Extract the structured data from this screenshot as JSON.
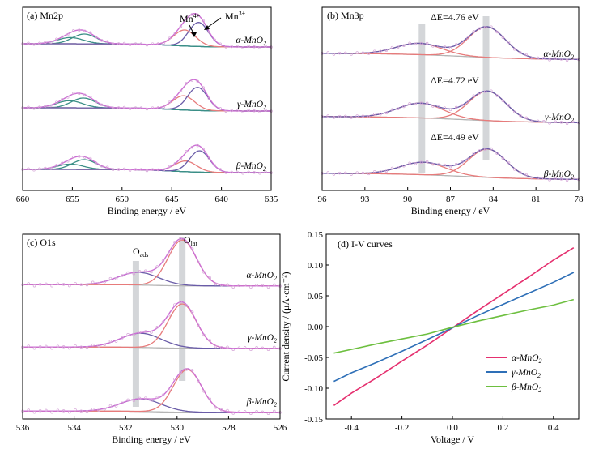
{
  "chart_data": [
    {
      "id": "a",
      "type": "line",
      "panel_label": "(a) Mn2p",
      "xlabel": "Binding energy / eV",
      "xlim": [
        660,
        635
      ],
      "xticks": [
        "660",
        "655",
        "650",
        "645",
        "640",
        "635"
      ],
      "peak_labels": [
        "Mn4+",
        "Mn3+"
      ],
      "series_labels": [
        "α-MnO2",
        "γ-MnO2",
        "β-MnO2"
      ],
      "traces": [
        {
          "name": "α-MnO2",
          "peaks": [
            {
              "c": 655.2,
              "h": 0.35,
              "w": 1.3
            },
            {
              "c": 653.8,
              "h": 0.55,
              "w": 1.2
            },
            {
              "c": 643.7,
              "h": 0.9,
              "w": 1.1
            },
            {
              "c": 642.3,
              "h": 1.35,
              "w": 1.0
            }
          ]
        },
        {
          "name": "γ-MnO2",
          "peaks": [
            {
              "c": 655.3,
              "h": 0.4,
              "w": 1.3
            },
            {
              "c": 653.9,
              "h": 0.55,
              "w": 1.2
            },
            {
              "c": 643.8,
              "h": 0.8,
              "w": 1.1
            },
            {
              "c": 642.4,
              "h": 1.3,
              "w": 1.0
            }
          ]
        },
        {
          "name": "β-MnO2",
          "peaks": [
            {
              "c": 655.2,
              "h": 0.3,
              "w": 1.3
            },
            {
              "c": 653.8,
              "h": 0.55,
              "w": 1.2
            },
            {
              "c": 643.6,
              "h": 0.6,
              "w": 1.1
            },
            {
              "c": 642.2,
              "h": 1.2,
              "w": 1.0
            }
          ]
        }
      ]
    },
    {
      "id": "b",
      "type": "line",
      "panel_label": "(b) Mn3p",
      "xlabel": "Binding energy / eV",
      "xlim": [
        96,
        78
      ],
      "xticks": [
        "96",
        "93",
        "90",
        "87",
        "84",
        "81",
        "78"
      ],
      "delta_labels": [
        "ΔE=4.76 eV",
        "ΔE=4.72 eV",
        "ΔE=4.49 eV"
      ],
      "series_labels": [
        "α-MnO2",
        "γ-MnO2",
        "β-MnO2"
      ],
      "highlight_bands": [
        89.0,
        84.5
      ],
      "traces": [
        {
          "name": "α-MnO2",
          "peaks": [
            {
              "c": 89.2,
              "h": 0.5,
              "w": 1.6
            },
            {
              "c": 84.45,
              "h": 1.35,
              "w": 1.3
            }
          ]
        },
        {
          "name": "γ-MnO2",
          "peaks": [
            {
              "c": 89.1,
              "h": 0.65,
              "w": 1.6
            },
            {
              "c": 84.4,
              "h": 1.3,
              "w": 1.3
            }
          ]
        },
        {
          "name": "β-MnO2",
          "peaks": [
            {
              "c": 88.9,
              "h": 0.55,
              "w": 1.6
            },
            {
              "c": 84.4,
              "h": 1.25,
              "w": 1.3
            }
          ]
        }
      ]
    },
    {
      "id": "c",
      "type": "line",
      "panel_label": "(c) O1s",
      "xlabel": "Binding energy / eV",
      "xlim": [
        536,
        526
      ],
      "xticks": [
        "536",
        "534",
        "532",
        "530",
        "528",
        "526"
      ],
      "peak_labels": [
        "Oads",
        "Olat"
      ],
      "series_labels": [
        "α-MnO2",
        "γ-MnO2",
        "β-MnO2"
      ],
      "highlight_bands": [
        531.6,
        529.8
      ],
      "traces": [
        {
          "name": "α-MnO2",
          "peaks": [
            {
              "c": 531.5,
              "h": 0.4,
              "w": 0.8
            },
            {
              "c": 529.8,
              "h": 1.45,
              "w": 0.55
            }
          ]
        },
        {
          "name": "γ-MnO2",
          "peaks": [
            {
              "c": 531.4,
              "h": 0.45,
              "w": 0.8
            },
            {
              "c": 529.8,
              "h": 1.4,
              "w": 0.55
            }
          ]
        },
        {
          "name": "β-MnO2",
          "peaks": [
            {
              "c": 531.4,
              "h": 0.4,
              "w": 0.8
            },
            {
              "c": 529.6,
              "h": 1.35,
              "w": 0.55
            }
          ]
        }
      ]
    },
    {
      "id": "d",
      "type": "line",
      "panel_label": "(d) I-V curves",
      "xlabel": "Voltage / V",
      "ylabel": "Current density / (μA·cm⁻²)",
      "xlim": [
        -0.5,
        0.5
      ],
      "ylim": [
        -0.15,
        0.15
      ],
      "xticks": [
        -0.4,
        -0.2,
        0.0,
        0.2,
        0.4
      ],
      "xtick_labels": [
        "-0.4",
        "-0.2",
        "0.0",
        "0.2",
        "0.4"
      ],
      "yticks": [
        -0.15,
        -0.1,
        -0.05,
        0.0,
        0.05,
        0.1,
        0.15
      ],
      "ytick_labels": [
        "-0.15",
        "-0.10",
        "-0.05",
        "0.00",
        "0.05",
        "0.10",
        "0.15"
      ],
      "legend": "bottom-right",
      "x": [
        -0.47,
        -0.4,
        -0.3,
        -0.2,
        -0.1,
        0.0,
        0.1,
        0.2,
        0.3,
        0.4,
        0.48
      ],
      "series": [
        {
          "name": "α-MnO2",
          "color": "#e5306f",
          "values": [
            -0.128,
            -0.108,
            -0.083,
            -0.056,
            -0.03,
            -0.002,
            0.026,
            0.053,
            0.08,
            0.108,
            0.128
          ]
        },
        {
          "name": "γ-MnO2",
          "color": "#2e6fb7",
          "values": [
            -0.089,
            -0.075,
            -0.058,
            -0.04,
            -0.021,
            -0.002,
            0.018,
            0.036,
            0.054,
            0.072,
            0.088
          ]
        },
        {
          "name": "β-MnO2",
          "color": "#6dbf3f",
          "values": [
            -0.043,
            -0.037,
            -0.028,
            -0.02,
            -0.012,
            -0.001,
            0.009,
            0.018,
            0.027,
            0.035,
            0.044
          ]
        }
      ]
    }
  ]
}
